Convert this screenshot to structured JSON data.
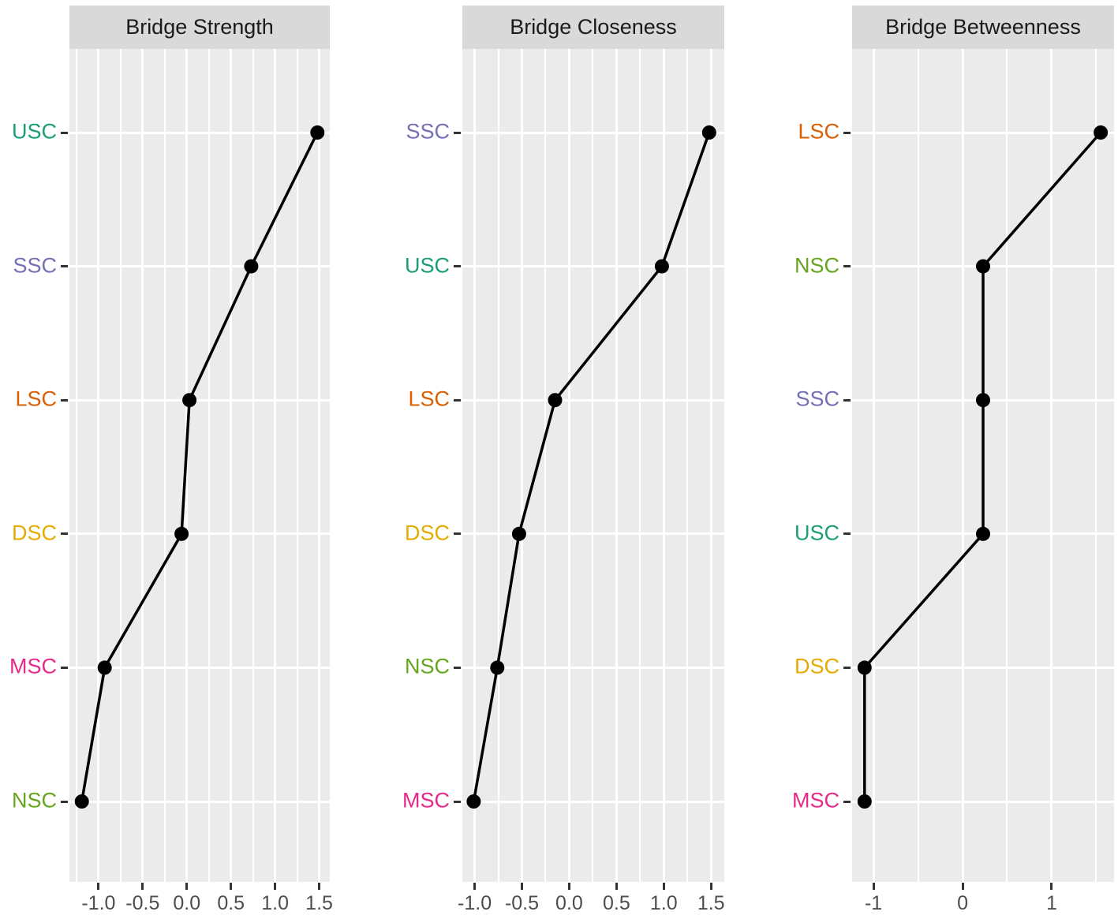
{
  "figure": {
    "background_color": "#ffffff",
    "panel_background_color": "#ebebeb",
    "strip_background_color": "#d9d9d9",
    "grid_color": "#ffffff",
    "line_color": "#000000",
    "point_color": "#000000",
    "axis_text_color": "#4d4d4d",
    "tick_mark_color": "#333333"
  },
  "node_colors": {
    "USC": "#1B9E77",
    "SSC": "#7570B3",
    "LSC": "#D95F02",
    "DSC": "#E6AB02",
    "MSC": "#E7298A",
    "NSC": "#66A61E"
  },
  "chart_data": [
    {
      "type": "line",
      "title": "Bridge Strength",
      "orientation": "value-on-x-category-on-y",
      "categories_top_to_bottom": [
        "USC",
        "SSC",
        "LSC",
        "DSC",
        "MSC",
        "NSC"
      ],
      "values": [
        1.48,
        0.73,
        0.03,
        -0.06,
        -0.93,
        -1.19
      ],
      "x_tick_labels": [
        "-1.0",
        "-0.5",
        "0.0",
        "0.5",
        "1.0",
        "1.5"
      ],
      "x_tick_values": [
        -1.0,
        -0.5,
        0.0,
        0.5,
        1.0,
        1.5
      ],
      "xlim": [
        -1.33,
        1.62
      ],
      "grid": true,
      "legend": false
    },
    {
      "type": "line",
      "title": "Bridge Closeness",
      "orientation": "value-on-x-category-on-y",
      "categories_top_to_bottom": [
        "SSC",
        "USC",
        "LSC",
        "DSC",
        "NSC",
        "MSC"
      ],
      "values": [
        1.48,
        0.98,
        -0.15,
        -0.53,
        -0.76,
        -1.01
      ],
      "x_tick_labels": [
        "-1.0",
        "-0.5",
        "0.0",
        "0.5",
        "1.0",
        "1.5"
      ],
      "x_tick_values": [
        -1.0,
        -0.5,
        0.0,
        0.5,
        1.0,
        1.5
      ],
      "xlim": [
        -1.13,
        1.64
      ],
      "grid": true,
      "legend": false
    },
    {
      "type": "line",
      "title": "Bridge Betweenness",
      "orientation": "value-on-x-category-on-y",
      "categories_top_to_bottom": [
        "LSC",
        "NSC",
        "SSC",
        "USC",
        "DSC",
        "MSC"
      ],
      "values": [
        1.55,
        0.23,
        0.23,
        0.23,
        -1.1,
        -1.1
      ],
      "x_tick_labels": [
        "-1",
        "0",
        "1"
      ],
      "x_tick_values": [
        -1,
        0,
        1
      ],
      "xlim": [
        -1.24,
        1.7
      ],
      "grid": true,
      "legend": false
    }
  ]
}
